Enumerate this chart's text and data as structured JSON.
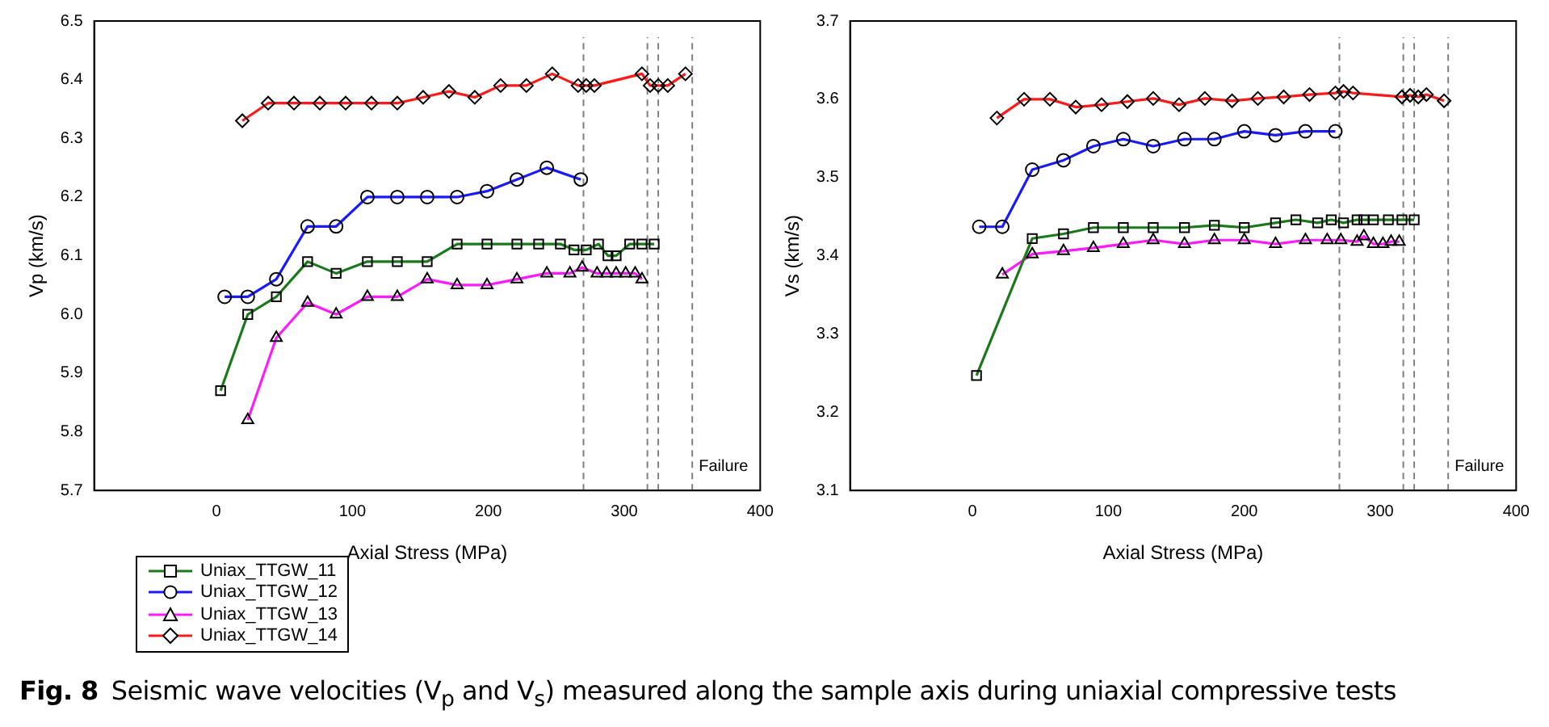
{
  "chart_data": [
    {
      "type": "line",
      "xlabel": "Axial Stress (MPa)",
      "ylabel": "Vp (km/s)",
      "xlim": [
        -90,
        400
      ],
      "xticks": [
        0,
        100,
        200,
        300,
        400
      ],
      "ylim": [
        5.7,
        6.5
      ],
      "yticks": [
        5.7,
        5.8,
        5.9,
        {
          "value": 6,
          "label": "6.0"
        },
        6.1,
        6.2,
        6.3,
        6.4,
        6.5
      ],
      "grid": false,
      "legend": "bottom left",
      "line_style": "solid",
      "series": [
        {
          "name": "Uniax_TTGW_11",
          "color": "#1a7a1a",
          "marker": "square",
          "x": [
            3,
            23,
            44,
            67,
            88,
            111,
            133,
            155,
            177,
            199,
            221,
            237,
            253,
            263,
            272,
            281,
            288,
            294,
            304,
            313,
            322
          ],
          "values": [
            5.87,
            6.0,
            6.03,
            6.09,
            6.07,
            6.09,
            6.09,
            6.09,
            6.12,
            6.12,
            6.12,
            6.12,
            6.12,
            6.11,
            6.11,
            6.12,
            6.1,
            6.1,
            6.12,
            6.12,
            6.12
          ]
        },
        {
          "name": "Uniax_TTGW_12",
          "color": "#1a1aff",
          "marker": "circle",
          "x": [
            6,
            23,
            44,
            67,
            88,
            111,
            133,
            155,
            177,
            199,
            221,
            243,
            268
          ],
          "values": [
            6.03,
            6.03,
            6.06,
            6.15,
            6.15,
            6.2,
            6.2,
            6.2,
            6.2,
            6.21,
            6.23,
            6.25,
            6.23
          ]
        },
        {
          "name": "Uniax_TTGW_13",
          "color": "#ff1aff",
          "marker": "triangle",
          "x": [
            23,
            44,
            67,
            88,
            111,
            133,
            155,
            177,
            199,
            221,
            243,
            260,
            269,
            280,
            287,
            294,
            301,
            308,
            313
          ],
          "values": [
            5.82,
            5.96,
            6.02,
            6.0,
            6.03,
            6.03,
            6.06,
            6.05,
            6.05,
            6.06,
            6.07,
            6.07,
            6.08,
            6.07,
            6.07,
            6.07,
            6.07,
            6.07,
            6.06
          ]
        },
        {
          "name": "Uniax_TTGW_14",
          "color": "#ff1a1a",
          "marker": "diamond",
          "x": [
            19,
            38,
            57,
            76,
            95,
            114,
            133,
            152,
            171,
            190,
            209,
            228,
            247,
            266,
            272,
            278,
            313,
            319,
            325,
            332,
            345
          ],
          "values": [
            6.33,
            6.36,
            6.36,
            6.36,
            6.36,
            6.36,
            6.36,
            6.37,
            6.38,
            6.37,
            6.39,
            6.39,
            6.41,
            6.39,
            6.39,
            6.39,
            6.41,
            6.39,
            6.39,
            6.39,
            6.41
          ]
        }
      ],
      "ref_lines": [
        {
          "axis": "x",
          "value": 270,
          "line_style": "dashed",
          "color": "#808080"
        },
        {
          "axis": "x",
          "value": 317,
          "line_style": "dashed",
          "color": "#808080"
        },
        {
          "axis": "x",
          "value": 325,
          "line_style": "dashed",
          "color": "#808080"
        },
        {
          "axis": "x",
          "value": 350,
          "label": "Failure",
          "line_style": "dashed",
          "color": "#808080"
        }
      ],
      "annotations": [
        "Fig. 8",
        "Seismic wave velocities (V$_{p}$ and V$_{s}$) measured along the sample axis during uniaxial compressive tests"
      ]
    },
    {
      "type": "line",
      "xlabel": "Axial Stress (MPa)",
      "ylabel": "Vs (km/s)",
      "xlim": [
        -90,
        400
      ],
      "xticks": [
        0,
        100,
        200,
        300,
        400
      ],
      "ylim": [
        3.1,
        3.7
      ],
      "yticks": [
        3.1,
        3.2,
        3.3,
        3.4,
        3.5,
        3.6,
        3.7
      ],
      "grid": false,
      "line_style": "solid",
      "series": [
        {
          "color": "#1a7a1a",
          "marker": "square",
          "x": [
            3,
            44,
            67,
            89,
            111,
            133,
            156,
            178,
            200,
            223,
            238,
            254,
            264,
            273,
            283,
            288,
            295,
            306,
            316,
            325
          ],
          "values": [
            3.247,
            3.422,
            3.428,
            3.436,
            3.436,
            3.436,
            3.436,
            3.439,
            3.436,
            3.442,
            3.446,
            3.442,
            3.446,
            3.442,
            3.446,
            3.446,
            3.446,
            3.446,
            3.446,
            3.446
          ]
        },
        {
          "color": "#1a1aff",
          "marker": "circle",
          "x": [
            5,
            22,
            44,
            67,
            89,
            111,
            133,
            156,
            178,
            200,
            223,
            245,
            267
          ],
          "values": [
            3.437,
            3.437,
            3.51,
            3.522,
            3.54,
            3.549,
            3.54,
            3.549,
            3.549,
            3.559,
            3.554,
            3.559,
            3.559
          ]
        },
        {
          "color": "#ff1aff",
          "marker": "triangle",
          "x": [
            22,
            44,
            67,
            89,
            111,
            133,
            156,
            178,
            200,
            223,
            245,
            261,
            271,
            283,
            288,
            295,
            302,
            308,
            314
          ],
          "values": [
            3.376,
            3.402,
            3.406,
            3.41,
            3.415,
            3.42,
            3.415,
            3.42,
            3.42,
            3.415,
            3.42,
            3.42,
            3.42,
            3.418,
            3.425,
            3.415,
            3.415,
            3.418,
            3.418
          ]
        },
        {
          "color": "#ff1a1a",
          "marker": "diamond",
          "x": [
            18,
            38,
            57,
            76,
            95,
            114,
            133,
            152,
            171,
            191,
            210,
            229,
            248,
            267,
            273,
            280,
            316,
            322,
            328,
            334,
            347
          ],
          "values": [
            3.576,
            3.6,
            3.6,
            3.59,
            3.593,
            3.597,
            3.601,
            3.593,
            3.601,
            3.598,
            3.601,
            3.603,
            3.606,
            3.608,
            3.61,
            3.608,
            3.603,
            3.605,
            3.603,
            3.606,
            3.598
          ]
        }
      ],
      "ref_lines": [
        {
          "axis": "x",
          "value": 270,
          "line_style": "dashed",
          "color": "#808080"
        },
        {
          "axis": "x",
          "value": 317,
          "line_style": "dashed",
          "color": "#808080"
        },
        {
          "axis": "x",
          "value": 325,
          "line_style": "dashed",
          "color": "#808080"
        },
        {
          "axis": "x",
          "value": 350,
          "label": "Failure",
          "line_style": "dashed",
          "color": "#808080"
        }
      ]
    }
  ]
}
